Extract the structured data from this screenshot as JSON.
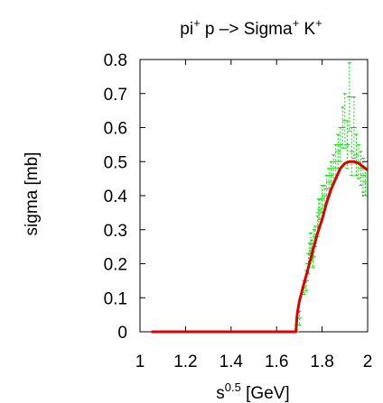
{
  "chart_data": {
    "type": "line",
    "title": {
      "base1": "pi",
      "sup1": "+",
      "mid": " p –> Sigma",
      "sup2": "+",
      "tail": " K",
      "sup3": "+"
    },
    "xlabel": {
      "base": "s",
      "sup": "0.5",
      "tail": " [GeV]"
    },
    "ylabel": "sigma [mb]",
    "xlim": [
      1,
      2
    ],
    "ylim": [
      0,
      0.8
    ],
    "xticks": [
      1,
      1.2,
      1.4,
      1.6,
      1.8,
      2
    ],
    "xtick_labels": [
      "1",
      "1.2",
      "1.4",
      "1.6",
      "1.8",
      "2"
    ],
    "yticks": [
      0,
      0.1,
      0.2,
      0.3,
      0.4,
      0.5,
      0.6,
      0.7,
      0.8
    ],
    "ytick_labels": [
      "0",
      "0.1",
      "0.2",
      "0.3",
      "0.4",
      "0.5",
      "0.6",
      "0.7",
      "0.8"
    ],
    "grid": false,
    "series": [
      {
        "kind": "errorbar",
        "color": "#00dd00",
        "points": [
          [
            1.69,
            0.02,
            0.02
          ],
          [
            1.7,
            0.04,
            0.02
          ],
          [
            1.72,
            0.13,
            0.02
          ],
          [
            1.73,
            0.15,
            0.03
          ],
          [
            1.74,
            0.2,
            0.03
          ],
          [
            1.745,
            0.23,
            0.03
          ],
          [
            1.75,
            0.26,
            0.03
          ],
          [
            1.755,
            0.24,
            0.03
          ],
          [
            1.76,
            0.22,
            0.03
          ],
          [
            1.765,
            0.26,
            0.04
          ],
          [
            1.77,
            0.28,
            0.03
          ],
          [
            1.78,
            0.31,
            0.03
          ],
          [
            1.785,
            0.35,
            0.04
          ],
          [
            1.79,
            0.36,
            0.03
          ],
          [
            1.8,
            0.39,
            0.04
          ],
          [
            1.81,
            0.4,
            0.03
          ],
          [
            1.82,
            0.42,
            0.04
          ],
          [
            1.83,
            0.44,
            0.04
          ],
          [
            1.84,
            0.46,
            0.04
          ],
          [
            1.85,
            0.48,
            0.04
          ],
          [
            1.86,
            0.5,
            0.05
          ],
          [
            1.87,
            0.53,
            0.05
          ],
          [
            1.88,
            0.55,
            0.05
          ],
          [
            1.89,
            0.6,
            0.06
          ],
          [
            1.9,
            0.62,
            0.08
          ],
          [
            1.91,
            0.55,
            0.07
          ],
          [
            1.92,
            0.69,
            0.1
          ],
          [
            1.93,
            0.53,
            0.07
          ],
          [
            1.94,
            0.6,
            0.09
          ],
          [
            1.95,
            0.52,
            0.06
          ],
          [
            1.96,
            0.5,
            0.05
          ],
          [
            1.97,
            0.48,
            0.05
          ],
          [
            1.98,
            0.46,
            0.05
          ],
          [
            1.99,
            0.44,
            0.04
          ]
        ]
      },
      {
        "kind": "line",
        "color": "#dd0000",
        "x": [
          1.05,
          1.685,
          1.69,
          1.7,
          1.72,
          1.74,
          1.76,
          1.78,
          1.8,
          1.82,
          1.84,
          1.86,
          1.88,
          1.9,
          1.92,
          1.94,
          1.96,
          1.98,
          2.0
        ],
        "y": [
          0.0,
          0.0,
          0.05,
          0.09,
          0.14,
          0.19,
          0.24,
          0.29,
          0.33,
          0.38,
          0.42,
          0.45,
          0.48,
          0.495,
          0.5,
          0.5,
          0.495,
          0.485,
          0.475
        ]
      }
    ]
  }
}
